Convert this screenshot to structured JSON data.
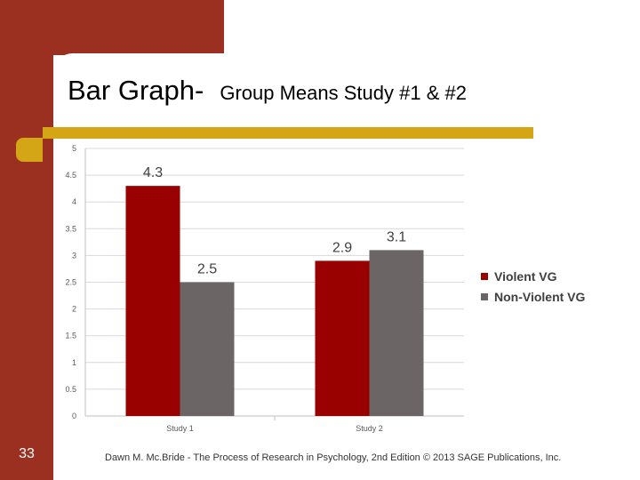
{
  "slide": {
    "title_main": "Bar Graph-",
    "title_sub": "Group Means Study #1 & #2",
    "slide_number": "33",
    "footer": "Dawn M. Mc.Bride - The Process of Research in Psychology, 2nd Edition © 2013 SAGE Publications, Inc."
  },
  "colors": {
    "theme_red": "#9b2f20",
    "theme_gold": "#d4a514"
  },
  "chart_data": {
    "type": "bar",
    "categories": [
      "Study 1",
      "Study 2"
    ],
    "series": [
      {
        "name": "Violent VG",
        "values": [
          4.3,
          2.9
        ],
        "labels": [
          "4.3",
          "2.9"
        ],
        "color": "#990000"
      },
      {
        "name": "Non-Violent VG",
        "values": [
          2.5,
          3.1
        ],
        "labels": [
          "2.5",
          "3.1"
        ],
        "color": "#6b6565"
      }
    ],
    "y_ticks": [
      "0",
      "0.5",
      "1",
      "1.5",
      "2",
      "2.5",
      "3",
      "3.5",
      "4",
      "4.5",
      "5"
    ],
    "ylim": [
      0,
      5
    ],
    "grid": true,
    "legend": "right"
  }
}
